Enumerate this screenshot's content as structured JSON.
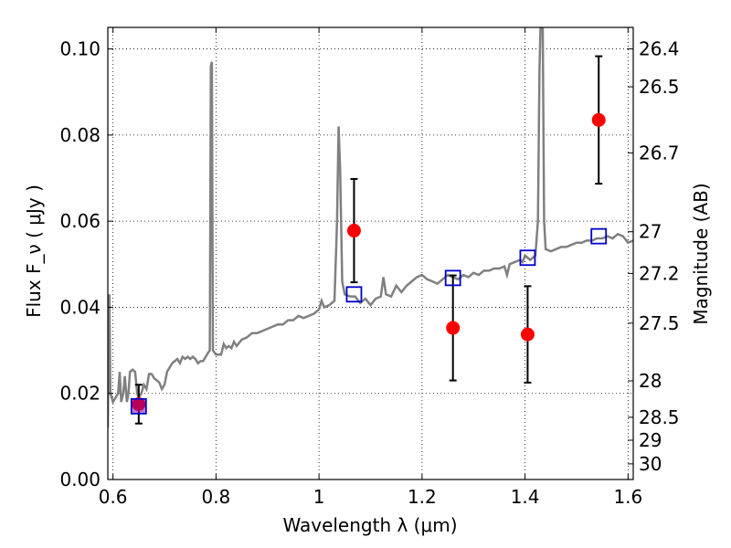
{
  "chart_data": {
    "type": "scatter",
    "xlabel": "Wavelength  λ (μm)",
    "ylabel": "Flux  F_ν  ( μJy )",
    "y2label": "Magnitude (AB)",
    "xlim": [
      0.59,
      1.61
    ],
    "ylim": [
      0.0,
      0.105
    ],
    "grid": true,
    "x_ticks": [
      {
        "value": 0.6,
        "label": "0.6"
      },
      {
        "value": 0.8,
        "label": "0.8"
      },
      {
        "value": 1.0,
        "label": "1"
      },
      {
        "value": 1.2,
        "label": "1.2"
      },
      {
        "value": 1.4,
        "label": "1.4"
      },
      {
        "value": 1.6,
        "label": "1.6"
      }
    ],
    "y_ticks": [
      {
        "value": 0.0,
        "label": "0.00"
      },
      {
        "value": 0.02,
        "label": "0.02"
      },
      {
        "value": 0.04,
        "label": "0.04"
      },
      {
        "value": 0.06,
        "label": "0.06"
      },
      {
        "value": 0.08,
        "label": "0.08"
      },
      {
        "value": 0.1,
        "label": "0.10"
      }
    ],
    "y2_ticks": [
      {
        "value": 26.4,
        "label": "26.4"
      },
      {
        "value": 26.5,
        "label": "26.5"
      },
      {
        "value": 26.7,
        "label": "26.7"
      },
      {
        "value": 27.0,
        "label": "27"
      },
      {
        "value": 27.2,
        "label": "27.2"
      },
      {
        "value": 27.5,
        "label": "27.5"
      },
      {
        "value": 28.0,
        "label": "28"
      },
      {
        "value": 28.5,
        "label": "28.5"
      },
      {
        "value": 29.0,
        "label": "29"
      },
      {
        "value": 30.0,
        "label": "30"
      }
    ],
    "series": [
      {
        "style": "spectrum-line",
        "color": "#808080",
        "points": [
          [
            0.59,
            0.012
          ],
          [
            0.592,
            0.041
          ],
          [
            0.593,
            0.043
          ],
          [
            0.595,
            0.02
          ],
          [
            0.6,
            0.018
          ],
          [
            0.605,
            0.019
          ],
          [
            0.61,
            0.02
          ],
          [
            0.613,
            0.025
          ],
          [
            0.616,
            0.018
          ],
          [
            0.62,
            0.02
          ],
          [
            0.623,
            0.024
          ],
          [
            0.627,
            0.018
          ],
          [
            0.63,
            0.02
          ],
          [
            0.633,
            0.025
          ],
          [
            0.638,
            0.0255
          ],
          [
            0.643,
            0.025
          ],
          [
            0.647,
            0.02
          ],
          [
            0.65,
            0.019
          ],
          [
            0.655,
            0.02
          ],
          [
            0.66,
            0.022
          ],
          [
            0.665,
            0.021
          ],
          [
            0.67,
            0.0245
          ],
          [
            0.675,
            0.0245
          ],
          [
            0.68,
            0.0235
          ],
          [
            0.69,
            0.0225
          ],
          [
            0.695,
            0.021
          ],
          [
            0.7,
            0.022
          ],
          [
            0.705,
            0.025
          ],
          [
            0.71,
            0.026
          ],
          [
            0.715,
            0.027
          ],
          [
            0.72,
            0.0275
          ],
          [
            0.725,
            0.028
          ],
          [
            0.73,
            0.027
          ],
          [
            0.735,
            0.0285
          ],
          [
            0.74,
            0.028
          ],
          [
            0.745,
            0.0285
          ],
          [
            0.75,
            0.028
          ],
          [
            0.755,
            0.0285
          ],
          [
            0.76,
            0.028
          ],
          [
            0.765,
            0.027
          ],
          [
            0.77,
            0.0275
          ],
          [
            0.775,
            0.0275
          ],
          [
            0.78,
            0.0285
          ],
          [
            0.785,
            0.0295
          ],
          [
            0.788,
            0.03
          ],
          [
            0.79,
            0.096
          ],
          [
            0.792,
            0.097
          ],
          [
            0.794,
            0.03
          ],
          [
            0.797,
            0.0295
          ],
          [
            0.8,
            0.029
          ],
          [
            0.81,
            0.029
          ],
          [
            0.815,
            0.0315
          ],
          [
            0.82,
            0.0305
          ],
          [
            0.825,
            0.031
          ],
          [
            0.83,
            0.0305
          ],
          [
            0.835,
            0.032
          ],
          [
            0.84,
            0.031
          ],
          [
            0.85,
            0.0325
          ],
          [
            0.86,
            0.033
          ],
          [
            0.87,
            0.034
          ],
          [
            0.88,
            0.034
          ],
          [
            0.89,
            0.0345
          ],
          [
            0.9,
            0.035
          ],
          [
            0.91,
            0.0355
          ],
          [
            0.92,
            0.036
          ],
          [
            0.93,
            0.036
          ],
          [
            0.94,
            0.037
          ],
          [
            0.95,
            0.037
          ],
          [
            0.96,
            0.038
          ],
          [
            0.97,
            0.0375
          ],
          [
            0.98,
            0.038
          ],
          [
            0.99,
            0.0385
          ],
          [
            1.0,
            0.0395
          ],
          [
            1.005,
            0.0415
          ],
          [
            1.01,
            0.04
          ],
          [
            1.02,
            0.0405
          ],
          [
            1.03,
            0.0415
          ],
          [
            1.035,
            0.06
          ],
          [
            1.038,
            0.082
          ],
          [
            1.041,
            0.072
          ],
          [
            1.045,
            0.046
          ],
          [
            1.05,
            0.043
          ],
          [
            1.06,
            0.0425
          ],
          [
            1.07,
            0.0425
          ],
          [
            1.08,
            0.041
          ],
          [
            1.09,
            0.042
          ],
          [
            1.1,
            0.0405
          ],
          [
            1.11,
            0.042
          ],
          [
            1.12,
            0.0425
          ],
          [
            1.125,
            0.047
          ],
          [
            1.13,
            0.043
          ],
          [
            1.14,
            0.0425
          ],
          [
            1.15,
            0.045
          ],
          [
            1.16,
            0.0435
          ],
          [
            1.17,
            0.045
          ],
          [
            1.18,
            0.046
          ],
          [
            1.19,
            0.047
          ],
          [
            1.2,
            0.0475
          ],
          [
            1.21,
            0.0465
          ],
          [
            1.22,
            0.046
          ],
          [
            1.23,
            0.0455
          ],
          [
            1.24,
            0.0465
          ],
          [
            1.25,
            0.0475
          ],
          [
            1.26,
            0.047
          ],
          [
            1.27,
            0.0465
          ],
          [
            1.28,
            0.0475
          ],
          [
            1.29,
            0.047
          ],
          [
            1.3,
            0.048
          ],
          [
            1.31,
            0.0475
          ],
          [
            1.32,
            0.0485
          ],
          [
            1.33,
            0.0485
          ],
          [
            1.34,
            0.049
          ],
          [
            1.35,
            0.049
          ],
          [
            1.36,
            0.0495
          ],
          [
            1.365,
            0.0475
          ],
          [
            1.37,
            0.05
          ],
          [
            1.38,
            0.0505
          ],
          [
            1.39,
            0.051
          ],
          [
            1.395,
            0.0505
          ],
          [
            1.4,
            0.052
          ],
          [
            1.41,
            0.051
          ],
          [
            1.42,
            0.052
          ],
          [
            1.425,
            0.06
          ],
          [
            1.428,
            0.095
          ],
          [
            1.431,
            0.11
          ],
          [
            1.434,
            0.11
          ],
          [
            1.437,
            0.06
          ],
          [
            1.44,
            0.0535
          ],
          [
            1.45,
            0.053
          ],
          [
            1.46,
            0.0535
          ],
          [
            1.47,
            0.054
          ],
          [
            1.48,
            0.054
          ],
          [
            1.49,
            0.0545
          ],
          [
            1.5,
            0.055
          ],
          [
            1.51,
            0.055
          ],
          [
            1.52,
            0.0555
          ],
          [
            1.53,
            0.0555
          ],
          [
            1.54,
            0.056
          ],
          [
            1.55,
            0.056
          ],
          [
            1.56,
            0.0565
          ],
          [
            1.57,
            0.056
          ],
          [
            1.58,
            0.057
          ],
          [
            1.59,
            0.0565
          ],
          [
            1.6,
            0.055
          ],
          [
            1.61,
            0.0555
          ]
        ]
      },
      {
        "style": "observed-points",
        "color": "#ff0000",
        "points": [
          {
            "x": 0.65,
            "y": 0.0175,
            "yerr": 0.0045
          },
          {
            "x": 1.068,
            "y": 0.0578,
            "yerr": 0.012
          },
          {
            "x": 1.26,
            "y": 0.0352,
            "yerr": 0.0122
          },
          {
            "x": 1.405,
            "y": 0.0337,
            "yerr": 0.0112
          },
          {
            "x": 1.543,
            "y": 0.0835,
            "yerr": 0.0148
          }
        ]
      },
      {
        "style": "model-points",
        "color": "#0000cc",
        "points": [
          {
            "x": 0.65,
            "y": 0.017
          },
          {
            "x": 1.068,
            "y": 0.043
          },
          {
            "x": 1.26,
            "y": 0.0468
          },
          {
            "x": 1.405,
            "y": 0.0515
          },
          {
            "x": 1.543,
            "y": 0.0565
          }
        ]
      }
    ]
  }
}
